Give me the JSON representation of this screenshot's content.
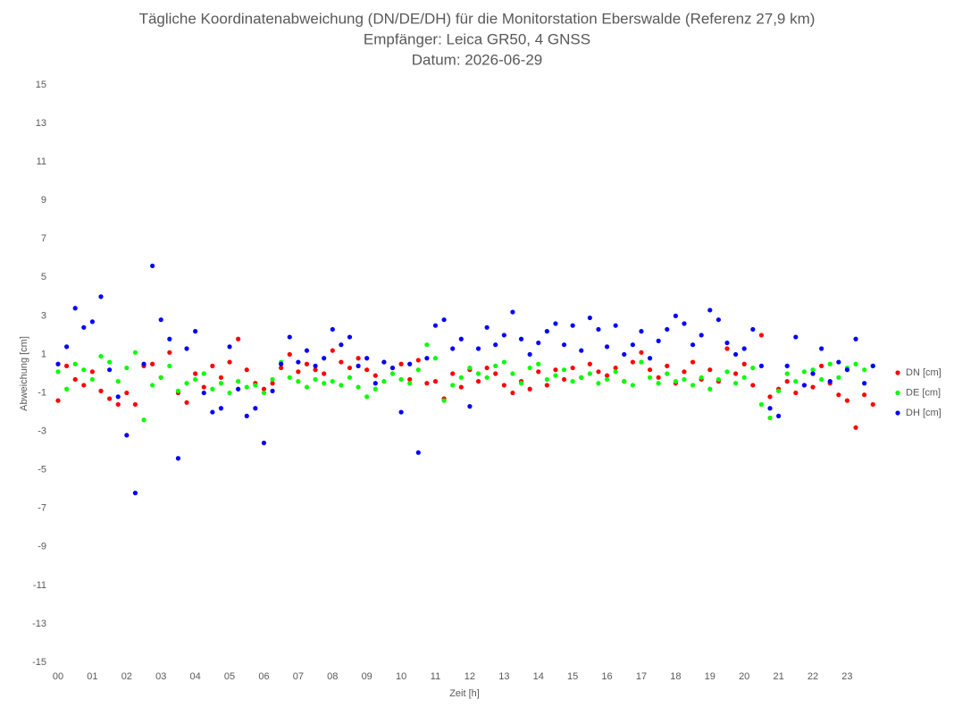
{
  "chart_data": {
    "type": "scatter",
    "title": "Tägliche Koordinatenabweichung (DN/DE/DH) für die Monitorstation Eberswalde (Referenz 27,9 km)",
    "subtitle": "Empfänger: Leica GR50, 4 GNSS",
    "date": "Datum: 2026-06-29",
    "xlabel": "Zeit [h]",
    "ylabel": "Abweichung [cm]",
    "legend": "right",
    "xlim": [
      0,
      23.9
    ],
    "ylim": [
      -15,
      15
    ],
    "xticks": [
      {
        "value": 0,
        "label": "00"
      },
      {
        "value": 1,
        "label": "01"
      },
      {
        "value": 2,
        "label": "02"
      },
      {
        "value": 3,
        "label": "03"
      },
      {
        "value": 4,
        "label": "04"
      },
      {
        "value": 5,
        "label": "05"
      },
      {
        "value": 6,
        "label": "06"
      },
      {
        "value": 7,
        "label": "07"
      },
      {
        "value": 8,
        "label": "08"
      },
      {
        "value": 9,
        "label": "09"
      },
      {
        "value": 10,
        "label": "10"
      },
      {
        "value": 11,
        "label": "11"
      },
      {
        "value": 12,
        "label": "12"
      },
      {
        "value": 13,
        "label": "13"
      },
      {
        "value": 14,
        "label": "14"
      },
      {
        "value": 15,
        "label": "15"
      },
      {
        "value": 16,
        "label": "16"
      },
      {
        "value": 17,
        "label": "17"
      },
      {
        "value": 18,
        "label": "18"
      },
      {
        "value": 19,
        "label": "19"
      },
      {
        "value": 20,
        "label": "20"
      },
      {
        "value": 21,
        "label": "21"
      },
      {
        "value": 22,
        "label": "22"
      },
      {
        "value": 23,
        "label": "23"
      }
    ],
    "yticks": [
      15,
      13,
      11,
      9,
      7,
      5,
      3,
      1,
      -1,
      -3,
      -5,
      -7,
      -9,
      -11,
      -13,
      -15
    ],
    "x": [
      0,
      0.25,
      0.5,
      0.75,
      1,
      1.25,
      1.5,
      1.75,
      2,
      2.25,
      2.5,
      2.75,
      3,
      3.25,
      3.5,
      3.75,
      4,
      4.25,
      4.5,
      4.75,
      5,
      5.25,
      5.5,
      5.75,
      6,
      6.25,
      6.5,
      6.75,
      7,
      7.25,
      7.5,
      7.75,
      8,
      8.25,
      8.5,
      8.75,
      9,
      9.25,
      9.5,
      9.75,
      10,
      10.25,
      10.5,
      10.75,
      11,
      11.25,
      11.5,
      11.75,
      12,
      12.25,
      12.5,
      12.75,
      13,
      13.25,
      13.5,
      13.75,
      14,
      14.25,
      14.5,
      14.75,
      15,
      15.25,
      15.5,
      15.75,
      16,
      16.25,
      16.5,
      16.75,
      17,
      17.25,
      17.5,
      17.75,
      18,
      18.25,
      18.5,
      18.75,
      19,
      19.25,
      19.5,
      19.75,
      20,
      20.25,
      20.5,
      20.75,
      21,
      21.25,
      21.5,
      21.75,
      22,
      22.25,
      22.5,
      22.75,
      23,
      23.25,
      23.5,
      23.75
    ],
    "series": [
      {
        "name": "DN [cm]",
        "color": "#ff0000",
        "values": [
          -1.4,
          0.4,
          -0.3,
          -0.6,
          0.1,
          -0.9,
          -1.3,
          -1.6,
          -1.0,
          -1.6,
          0.4,
          0.5,
          -0.2,
          1.1,
          -1.0,
          -1.5,
          0.0,
          -0.7,
          0.4,
          -0.2,
          0.6,
          1.8,
          0.2,
          -0.5,
          -0.8,
          -0.5,
          0.3,
          1.0,
          0.1,
          0.5,
          0.2,
          0.0,
          1.2,
          0.6,
          0.3,
          0.8,
          0.2,
          -0.1,
          0.6,
          0.3,
          0.5,
          -0.3,
          0.7,
          -0.5,
          -0.4,
          -1.3,
          0.0,
          -0.7,
          0.2,
          -0.4,
          0.3,
          0.0,
          -0.6,
          -1.0,
          -0.4,
          -0.8,
          0.1,
          -0.6,
          0.2,
          -0.3,
          0.3,
          -0.2,
          0.5,
          0.1,
          -0.1,
          0.3,
          -0.4,
          0.6,
          1.1,
          0.2,
          -0.2,
          0.4,
          -0.5,
          0.1,
          0.6,
          -0.3,
          0.2,
          -0.4,
          1.3,
          0.0,
          0.5,
          -0.6,
          2.0,
          -1.2,
          -0.8,
          -0.4,
          -1.0,
          -0.6,
          -0.7,
          0.4,
          -0.5,
          -1.1,
          -1.4,
          -2.8,
          -1.1,
          -1.6
        ]
      },
      {
        "name": "DE [cm]",
        "color": "#00ff00",
        "values": [
          0.1,
          -0.8,
          0.5,
          0.2,
          -0.3,
          0.9,
          0.6,
          -0.4,
          0.3,
          1.1,
          -2.4,
          -0.6,
          -0.2,
          0.4,
          -0.9,
          -0.5,
          -0.3,
          0.0,
          -0.8,
          -0.5,
          -1.0,
          -0.4,
          -0.7,
          -0.6,
          -1.0,
          -0.3,
          0.6,
          -0.2,
          -0.4,
          -0.7,
          -0.3,
          -0.5,
          -0.4,
          -0.6,
          -0.2,
          -0.7,
          -1.2,
          -0.8,
          -0.4,
          0.0,
          -0.3,
          -0.5,
          0.2,
          1.5,
          0.8,
          -1.4,
          -0.6,
          -0.2,
          0.3,
          0.0,
          -0.2,
          0.4,
          0.6,
          0.0,
          -0.5,
          0.3,
          0.5,
          -0.3,
          -0.1,
          0.2,
          -0.4,
          -0.2,
          0.0,
          -0.5,
          -0.3,
          0.1,
          -0.4,
          -0.6,
          0.6,
          -0.2,
          -0.5,
          0.0,
          -0.4,
          -0.3,
          -0.6,
          -0.2,
          -0.8,
          -0.3,
          0.1,
          -0.5,
          -0.2,
          0.3,
          -1.6,
          -2.3,
          -0.9,
          0.0,
          -0.4,
          0.1,
          0.2,
          -0.3,
          0.5,
          -0.2,
          0.3,
          0.5,
          0.2,
          0.4
        ]
      },
      {
        "name": "DH [cm]",
        "color": "#0000ff",
        "values": [
          0.5,
          1.4,
          3.4,
          2.4,
          2.7,
          4.0,
          0.2,
          -1.2,
          -3.2,
          -6.2,
          0.5,
          5.6,
          2.8,
          1.8,
          -4.4,
          1.3,
          2.2,
          -1.0,
          -2.0,
          -1.8,
          1.4,
          -0.8,
          -2.2,
          -1.8,
          -3.6,
          -0.9,
          0.5,
          1.9,
          0.6,
          1.2,
          0.4,
          0.8,
          2.3,
          1.5,
          1.9,
          0.4,
          0.8,
          -0.5,
          0.6,
          0.3,
          -2.0,
          0.5,
          -4.1,
          0.8,
          2.5,
          2.8,
          1.3,
          1.8,
          -1.7,
          1.3,
          2.4,
          1.5,
          2.0,
          3.2,
          1.8,
          1.0,
          1.6,
          2.2,
          2.6,
          1.5,
          2.5,
          1.2,
          2.9,
          2.3,
          1.4,
          2.5,
          1.0,
          1.5,
          2.2,
          0.8,
          1.7,
          2.3,
          3.0,
          2.6,
          1.5,
          2.0,
          3.3,
          2.8,
          1.6,
          1.0,
          1.3,
          2.3,
          0.4,
          -1.8,
          -2.2,
          0.4,
          1.9,
          -0.6,
          0.0,
          1.3,
          -0.4,
          0.6,
          0.2,
          1.8,
          -0.5,
          0.4
        ]
      }
    ]
  }
}
